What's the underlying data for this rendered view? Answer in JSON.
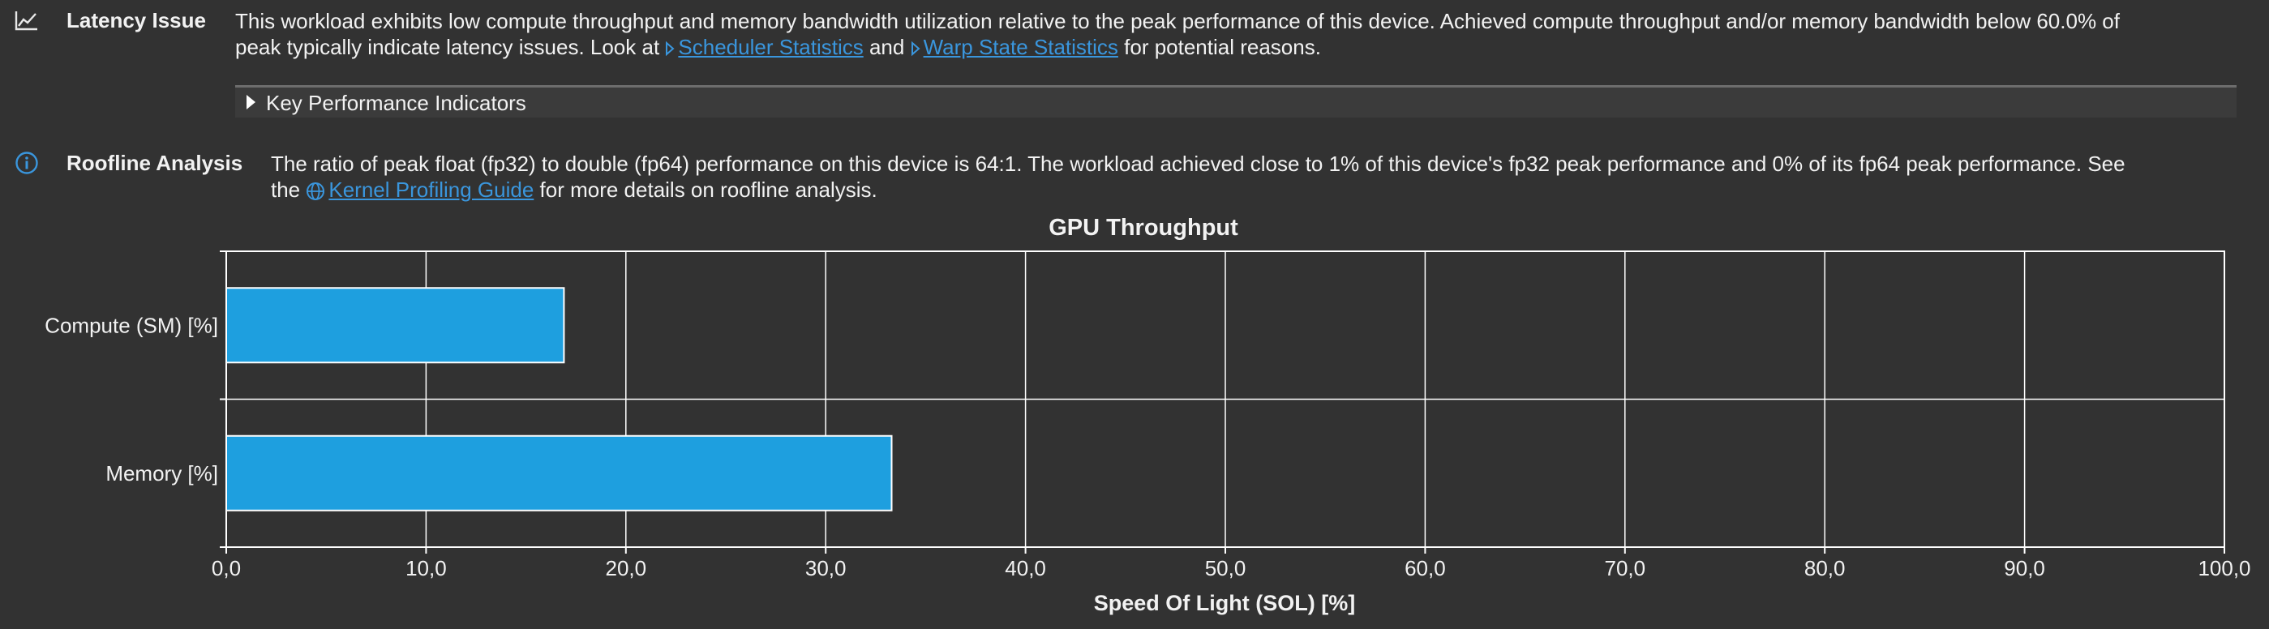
{
  "latency": {
    "icon": "line-chart-icon",
    "heading": "Latency Issue",
    "line1": "This workload exhibits low compute throughput and memory bandwidth utilization relative to the peak performance of this device. Achieved compute throughput and/or memory bandwidth below 60.0% of",
    "line2_prefix": "peak typically indicate latency issues. Look at ",
    "link1": "Scheduler Statistics",
    "and": " and ",
    "link2": "Warp State Statistics",
    "suffix": " for potential reasons.",
    "kpi_label": "Key Performance Indicators"
  },
  "roofline": {
    "icon": "info-icon",
    "heading": "Roofline Analysis",
    "line1": "The ratio of peak float (fp32) to double (fp64) performance on this device is 64:1. The workload achieved close to 1% of this device's fp32 peak performance and 0% of its fp64 peak performance. See",
    "line2_prefix": "the ",
    "link": "Kernel Profiling Guide",
    "suffix": " for more details on roofline analysis."
  },
  "colors": {
    "background": "#323232",
    "bar_fill": "#1e9fdf",
    "link": "#3a96dd",
    "grid": "#ffffff"
  },
  "chart_data": {
    "type": "bar",
    "orientation": "horizontal",
    "title": "GPU Throughput",
    "categories": [
      "Compute (SM) [%]",
      "Memory [%]"
    ],
    "values": [
      16.9,
      33.3
    ],
    "xlabel": "Speed Of Light (SOL) [%]",
    "ylabel": "",
    "xlim": [
      0,
      100
    ],
    "x_ticks": [
      "0,0",
      "10,0",
      "20,0",
      "30,0",
      "40,0",
      "50,0",
      "60,0",
      "70,0",
      "80,0",
      "90,0",
      "100,0"
    ],
    "grid": true
  }
}
